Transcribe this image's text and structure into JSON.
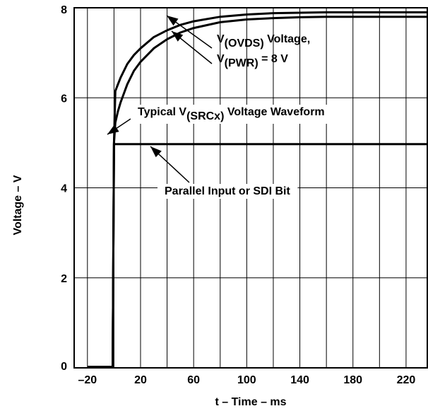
{
  "chart_data": {
    "type": "line",
    "xlabel": "t – Time – ms",
    "ylabel": "Voltage – V",
    "xlim": [
      -30,
      236
    ],
    "ylim": [
      0,
      8
    ],
    "x_ticks": [
      "–20",
      "20",
      "60",
      "100",
      "140",
      "180",
      "220"
    ],
    "x_tick_values": [
      -20,
      20,
      60,
      100,
      140,
      180,
      220
    ],
    "y_ticks": [
      "0",
      "2",
      "4",
      "6",
      "8"
    ],
    "y_tick_values": [
      0,
      2,
      4,
      6,
      8
    ],
    "grid": true,
    "series": [
      {
        "x": [
          -20,
          -2,
          -1,
          0,
          1,
          3,
          5,
          10,
          15,
          20,
          30,
          40,
          50,
          60,
          80,
          100,
          120,
          140,
          160,
          180,
          200,
          220,
          236
        ],
        "y": [
          0.02,
          0.02,
          0.02,
          5.0,
          6.15,
          6.3,
          6.45,
          6.75,
          6.95,
          7.1,
          7.35,
          7.5,
          7.62,
          7.7,
          7.8,
          7.85,
          7.88,
          7.89,
          7.9,
          7.9,
          7.9,
          7.9,
          7.9
        ]
      },
      {
        "x": [
          -20,
          -2,
          -1,
          0,
          1,
          3,
          5,
          10,
          15,
          20,
          30,
          40,
          50,
          60,
          80,
          100,
          120,
          140,
          160,
          180,
          200,
          220,
          236
        ],
        "y": [
          0.02,
          0.02,
          0.02,
          5.0,
          5.45,
          5.7,
          5.9,
          6.3,
          6.6,
          6.8,
          7.1,
          7.3,
          7.45,
          7.55,
          7.68,
          7.74,
          7.77,
          7.79,
          7.8,
          7.8,
          7.8,
          7.8,
          7.8
        ]
      },
      {
        "x": [
          -20,
          -2,
          -1,
          0,
          236
        ],
        "y": [
          0.02,
          0.02,
          0.02,
          4.97,
          4.97
        ]
      }
    ],
    "annotations": [
      {
        "lines": [
          [
            "V",
            "(OVDS)",
            " Voltage,"
          ],
          [
            "V",
            "(PWR)",
            " = 8 V"
          ]
        ]
      },
      {
        "lines": [
          [
            "Typical V",
            "(SRCx)",
            " Voltage Waveform"
          ]
        ]
      },
      {
        "lines": [
          [
            "Parallel Input or SDI Bit",
            "",
            ""
          ]
        ]
      }
    ]
  }
}
